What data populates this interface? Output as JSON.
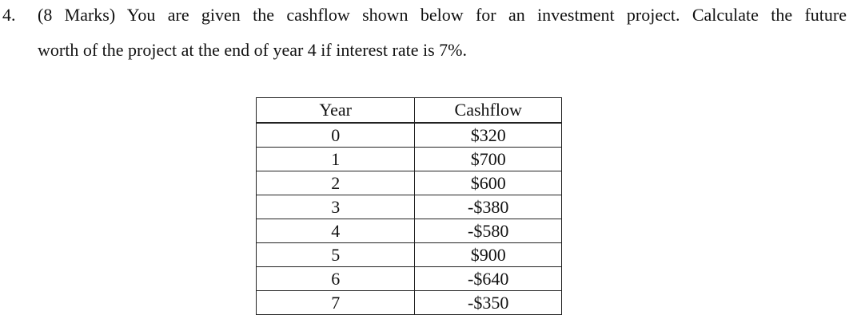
{
  "question": {
    "number": "4.",
    "line1": "(8 Marks) You are given the cashflow shown below for an investment project. Calculate the future",
    "line2": "worth of the project at the end of year 4 if interest rate is 7%."
  },
  "table": {
    "headers": [
      "Year",
      "Cashflow"
    ],
    "rows": [
      {
        "year": "0",
        "cashflow": "$320"
      },
      {
        "year": "1",
        "cashflow": "$700"
      },
      {
        "year": "2",
        "cashflow": "$600"
      },
      {
        "year": "3",
        "cashflow": "-$380"
      },
      {
        "year": "4",
        "cashflow": "-$580"
      },
      {
        "year": "5",
        "cashflow": "$900"
      },
      {
        "year": "6",
        "cashflow": "-$640"
      },
      {
        "year": "7",
        "cashflow": "-$350"
      }
    ]
  }
}
